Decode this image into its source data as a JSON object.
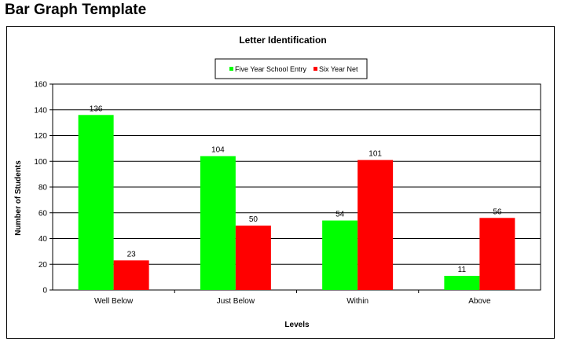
{
  "page": {
    "heading": "Bar Graph Template"
  },
  "chart_data": {
    "type": "bar",
    "title": "Letter Identification",
    "xlabel": "Levels",
    "ylabel": "Number of Students",
    "categories": [
      "Well Below",
      "Just Below",
      "Within",
      "Above"
    ],
    "series": [
      {
        "name": "Five Year School Entry",
        "color": "#00ff00",
        "values": [
          136,
          104,
          54,
          11
        ]
      },
      {
        "name": "Six Year Net",
        "color": "#ff0000",
        "values": [
          23,
          50,
          101,
          56
        ]
      }
    ],
    "ylim": [
      0,
      160
    ],
    "yticks": [
      0,
      20,
      40,
      60,
      80,
      100,
      120,
      140,
      160
    ],
    "grid": true,
    "legend_position": "top-center",
    "data_labels": true
  }
}
